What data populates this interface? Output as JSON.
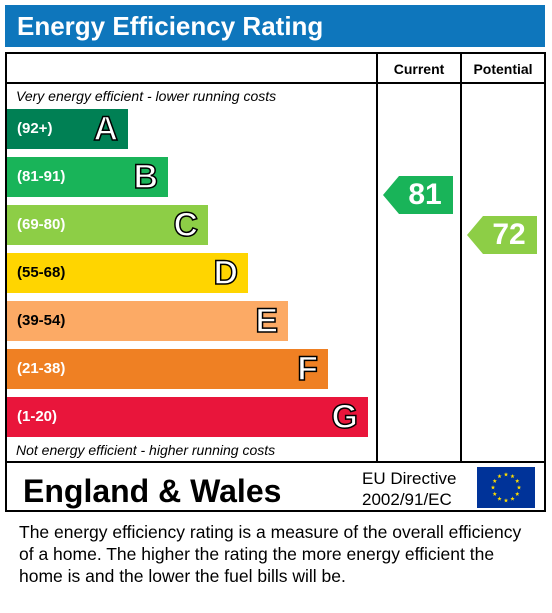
{
  "header": {
    "title": "Energy Efficiency Rating"
  },
  "columns": {
    "current": "Current",
    "potential": "Potential"
  },
  "notes": {
    "top": "Very energy efficient - lower running costs",
    "bottom": "Not energy efficient - higher running costs"
  },
  "chart_data": {
    "type": "bar",
    "categories": [
      "A",
      "B",
      "C",
      "D",
      "E",
      "F",
      "G"
    ],
    "ranges": [
      "(92+)",
      "(81-91)",
      "(69-80)",
      "(55-68)",
      "(39-54)",
      "(21-38)",
      "(1-20)"
    ],
    "range_bounds": [
      [
        92,
        100
      ],
      [
        81,
        91
      ],
      [
        69,
        80
      ],
      [
        55,
        68
      ],
      [
        39,
        54
      ],
      [
        21,
        38
      ],
      [
        1,
        20
      ]
    ],
    "colors": [
      "#008054",
      "#19b459",
      "#8dce46",
      "#ffd500",
      "#fcaa65",
      "#ef8023",
      "#e9153b"
    ],
    "current": {
      "value": 81,
      "band": "B",
      "color": "#19b459"
    },
    "potential": {
      "value": 72,
      "band": "C",
      "color": "#8dce46"
    }
  },
  "footer": {
    "country": "England & Wales",
    "directive_line1": "EU Directive",
    "directive_line2": "2002/91/EC",
    "flag_icon": "eu-flag-icon"
  },
  "description": "The energy efficiency rating is a measure of the overall efficiency of a home.  The higher the rating the more energy efficient the home is and the lower the fuel bills will be."
}
